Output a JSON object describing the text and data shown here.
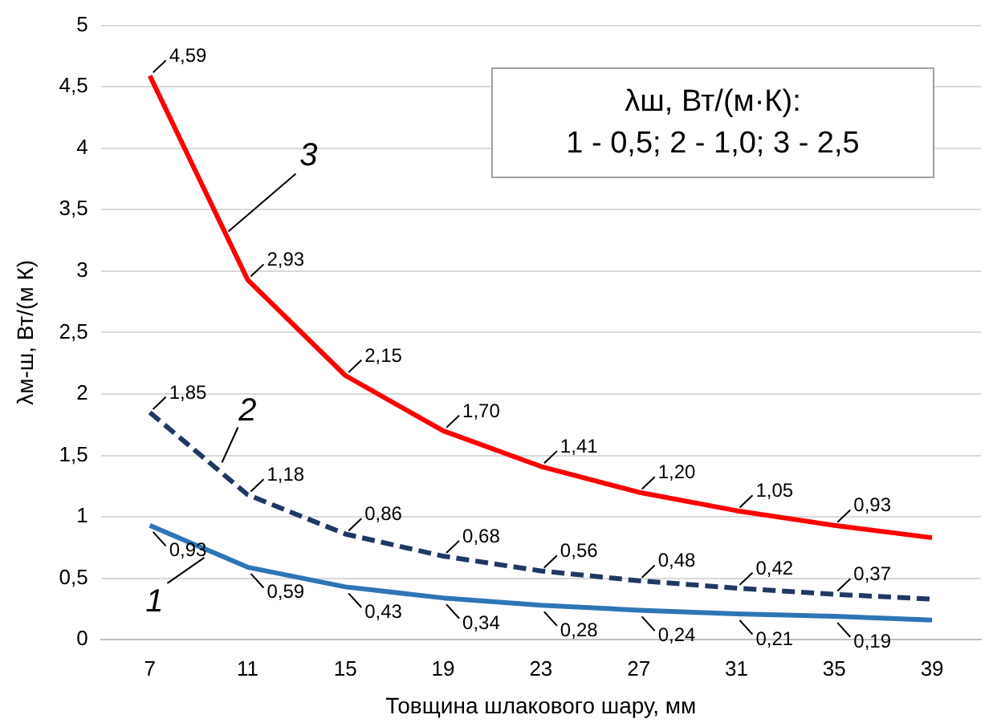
{
  "chart_data": {
    "type": "line",
    "xlabel": "Товщина шлакового шару, мм",
    "ylabel": "λм-ш, Вт/(м К)",
    "categories": [
      "7",
      "11",
      "15",
      "19",
      "23",
      "27",
      "31",
      "35",
      "39"
    ],
    "series": [
      {
        "name": "1",
        "color": "#2e75b6",
        "line_style": "solid",
        "values": [
          0.93,
          0.59,
          0.43,
          0.34,
          0.28,
          0.24,
          0.21,
          0.19,
          0.16
        ],
        "value_labels": [
          "0,93",
          "0,59",
          "0,43",
          "0,34",
          "0,28",
          "0,24",
          "0,21",
          "0,19",
          null
        ]
      },
      {
        "name": "2",
        "color": "#1f3864",
        "line_style": "dashed",
        "values": [
          1.85,
          1.18,
          0.86,
          0.68,
          0.56,
          0.48,
          0.42,
          0.37,
          0.33
        ],
        "value_labels": [
          "1,85",
          "1,18",
          "0,86",
          "0,68",
          "0,56",
          "0,48",
          "0,42",
          "0,37",
          null
        ]
      },
      {
        "name": "3",
        "color": "#ff0000",
        "line_style": "solid",
        "values": [
          4.59,
          2.93,
          2.15,
          1.7,
          1.41,
          1.2,
          1.05,
          0.93,
          0.83
        ],
        "value_labels": [
          "4,59",
          "2,93",
          "2,15",
          "1,70",
          "1,41",
          "1,20",
          "1,05",
          "0,93",
          null
        ]
      }
    ],
    "ylim": [
      0,
      5
    ],
    "yticks": [
      0,
      {
        "value": 0.5,
        "label": "0,5"
      },
      1,
      {
        "value": 1.5,
        "label": "1,5"
      },
      2,
      {
        "value": 2.5,
        "label": "2,5"
      },
      3,
      {
        "value": 3.5,
        "label": "3,5"
      },
      4,
      {
        "value": 4.5,
        "label": "4,5"
      },
      5
    ],
    "grid": "y",
    "legend": false,
    "marker": "none",
    "annotations": [
      "λш, Вт/(м·К):",
      "1 - 0,5; 2 - 1,0; 3 - 2,5"
    ]
  }
}
